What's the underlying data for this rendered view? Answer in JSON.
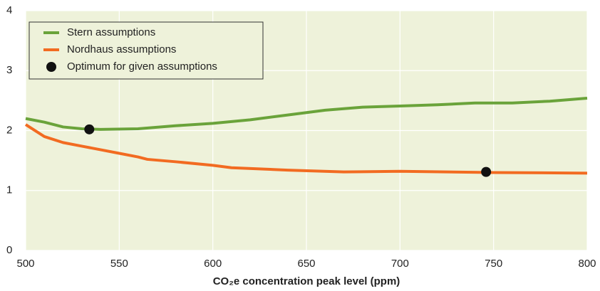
{
  "chart_data": {
    "type": "line",
    "x_label": "CO₂e concentration peak level (ppm)",
    "xlim": [
      500,
      800
    ],
    "xticks": [
      500,
      550,
      600,
      650,
      700,
      750,
      800
    ],
    "ylim": [
      0,
      4
    ],
    "yticks": [
      0,
      1,
      2,
      3,
      4
    ],
    "grid": true,
    "legend": "upper left",
    "series": [
      {
        "name": "Stern assumptions",
        "type": "line",
        "color": "#6aa33a",
        "x": [
          500,
          510,
          520,
          530,
          540,
          560,
          580,
          600,
          620,
          640,
          660,
          680,
          700,
          720,
          740,
          760,
          780,
          800
        ],
        "values": [
          2.2,
          2.14,
          2.06,
          2.03,
          2.02,
          2.03,
          2.08,
          2.12,
          2.18,
          2.26,
          2.34,
          2.39,
          2.41,
          2.43,
          2.46,
          2.46,
          2.49,
          2.54
        ]
      },
      {
        "name": "Nordhaus assumptions",
        "type": "line",
        "color": "#f26b21",
        "x": [
          500,
          510,
          520,
          530,
          540,
          550,
          560,
          565,
          580,
          600,
          610,
          640,
          670,
          700,
          750,
          800
        ],
        "values": [
          2.1,
          1.9,
          1.8,
          1.74,
          1.68,
          1.62,
          1.56,
          1.52,
          1.48,
          1.42,
          1.38,
          1.34,
          1.31,
          1.32,
          1.3,
          1.29
        ]
      },
      {
        "name": "Optimum for given assumptions",
        "type": "scatter",
        "color": "#111111",
        "x": [
          534,
          746
        ],
        "values": [
          2.02,
          1.31
        ]
      }
    ]
  }
}
